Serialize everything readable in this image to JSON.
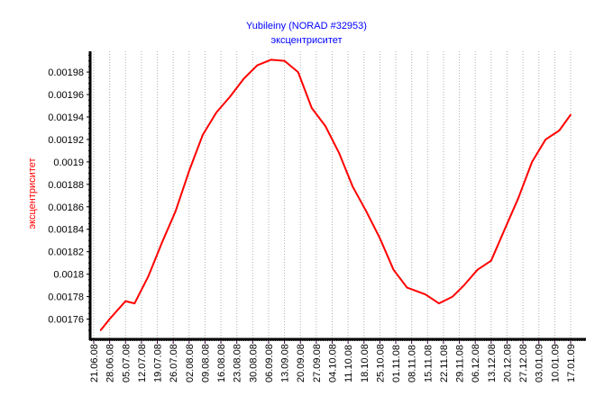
{
  "chart_data": {
    "type": "line",
    "title": "Yubileiny (NORAD #32953)",
    "subtitle": "эксцентриситет",
    "ylabel": "эксцентриситет",
    "xlabel": "",
    "ylim": [
      0.001742,
      0.0019985
    ],
    "y_ticks": [
      "0.00176",
      "0.00178",
      "0.0018",
      "0.00182",
      "0.00184",
      "0.00186",
      "0.00188",
      "0.0019",
      "0.00192",
      "0.00194",
      "0.00196",
      "0.00198"
    ],
    "x_ticks": [
      "21.06.08",
      "28.06.08",
      "05.07.08",
      "12.07.08",
      "19.07.08",
      "26.07.08",
      "02.08.08",
      "09.08.08",
      "16.08.08",
      "23.08.08",
      "30.08.08",
      "06.09.08",
      "13.09.08",
      "20.09.08",
      "27.09.08",
      "04.10.08",
      "11.10.08",
      "18.10.08",
      "25.10.08",
      "01.11.08",
      "08.11.08",
      "15.11.08",
      "22.11.08",
      "29.11.08",
      "06.12.08",
      "13.12.08",
      "20.12.08",
      "27.12.08",
      "03.01.09",
      "10.01.09",
      "17.01.09"
    ],
    "grid": "vertical dotted",
    "line_color": "#ff0000",
    "title_color": "#0000ff",
    "series": [
      {
        "x": [
          "24.06.08",
          "28.06.08",
          "05.07.08",
          "09.07.08",
          "15.07.08",
          "21.07.08",
          "27.07.08",
          "02.08.08",
          "08.08.08",
          "14.08.08",
          "20.08.08",
          "26.08.08",
          "01.09.08",
          "07.09.08",
          "13.09.08",
          "19.09.08",
          "25.09.08",
          "01.10.08",
          "07.10.08",
          "13.10.08",
          "19.10.08",
          "25.10.08",
          "31.10.08",
          "06.11.08",
          "14.11.08",
          "20.11.08",
          "26.11.08",
          "01.12.08",
          "07.12.08",
          "13.12.08",
          "19.12.08",
          "25.12.08",
          "31.12.08",
          "06.01.09",
          "12.01.09",
          "17.01.09"
        ],
        "y": [
          0.00175,
          0.00176,
          0.001776,
          0.001774,
          0.001798,
          0.001828,
          0.001856,
          0.001892,
          0.001924,
          0.001944,
          0.001958,
          0.001974,
          0.001986,
          0.001991,
          0.00199,
          0.00198,
          0.001948,
          0.001932,
          0.001908,
          0.001878,
          0.001856,
          0.001832,
          0.001804,
          0.001788,
          0.001782,
          0.001774,
          0.00178,
          0.00179,
          0.001804,
          0.001812,
          0.00184,
          0.001868,
          0.0019,
          0.00192,
          0.001928,
          0.001942
        ]
      }
    ]
  }
}
